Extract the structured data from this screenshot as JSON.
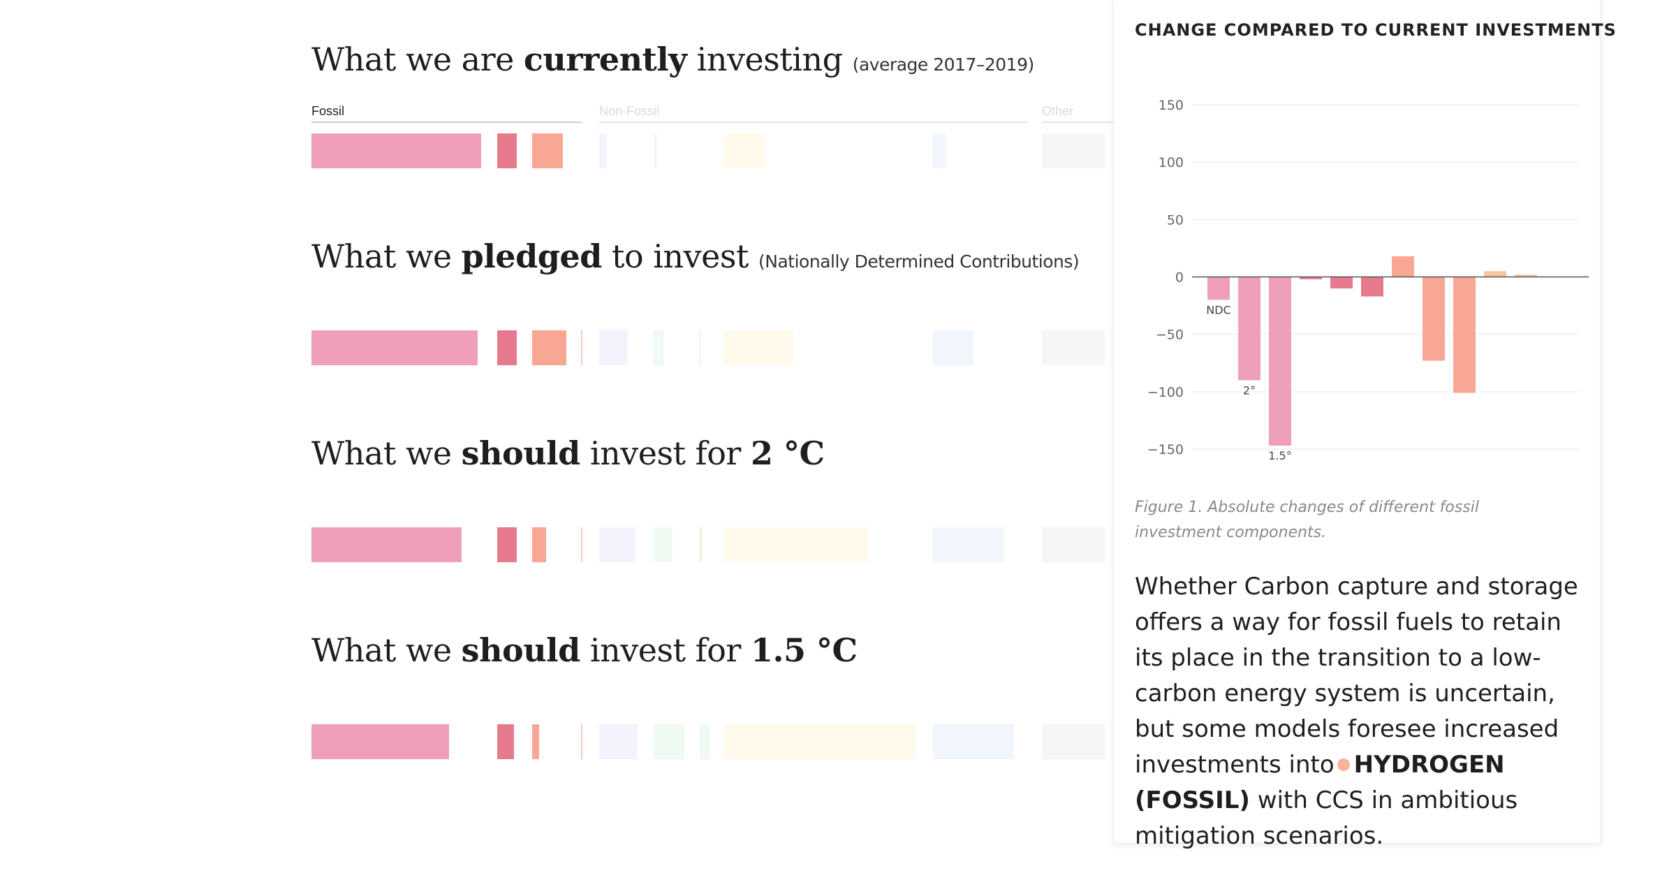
{
  "sections": [
    {
      "pre": "What we are ",
      "bold": "currently",
      "post": " investing ",
      "bold2": "",
      "sub": "(average 2017–2019)"
    },
    {
      "pre": "What we ",
      "bold": "pledged",
      "post": " to invest ",
      "bold2": "",
      "sub": "(Nationally Determined Contributions)"
    },
    {
      "pre": "What we ",
      "bold": "should",
      "post": " invest for ",
      "bold2": "2 °C",
      "sub": ""
    },
    {
      "pre": "What we ",
      "bold": "should",
      "post": " invest for ",
      "bold2": "1.5 °C",
      "sub": ""
    }
  ],
  "categories": {
    "fossil": "Fossil",
    "non_fossil": "Non-Fossil",
    "other": "Other"
  },
  "investment_bars": [
    [
      {
        "color": "#ef9fb8",
        "w": 243
      },
      {
        "color": "#e47a8c",
        "w": 28
      },
      {
        "color": "#f8a794",
        "w": 44
      },
      {
        "color": "#f4f3fd",
        "w": 11
      },
      {
        "color": "#f0f0f0",
        "w": 2
      },
      {
        "color": "#fffaec",
        "w": 60
      },
      {
        "color": "#f0f6fc",
        "w": 18
      },
      {
        "color": "#f6f6f7",
        "w": 90
      }
    ],
    [
      {
        "color": "#ef9fb8",
        "w": 238
      },
      {
        "color": "#e47a8c",
        "w": 28
      },
      {
        "color": "#f8a794",
        "w": 49
      },
      {
        "color": "#f6cbc0",
        "w": 2
      },
      {
        "color": "#f4f3fd",
        "w": 41
      },
      {
        "color": "#eefaf2",
        "w": 14
      },
      {
        "color": "#f0f0f0",
        "w": 2
      },
      {
        "color": "#fffaec",
        "w": 100
      },
      {
        "color": "#f0f6fc",
        "w": 58
      },
      {
        "color": "#f6f6f7",
        "w": 90
      }
    ],
    [
      {
        "color": "#ef9fb8",
        "w": 215
      },
      {
        "color": "#e47a8c",
        "w": 28
      },
      {
        "color": "#f8a794",
        "w": 20
      },
      {
        "color": "#f6cbc0",
        "w": 2
      },
      {
        "color": "#f4f3fd",
        "w": 52
      },
      {
        "color": "#eefaf2",
        "w": 27
      },
      {
        "color": "#efece0",
        "w": 3
      },
      {
        "color": "#fffaec",
        "w": 208
      },
      {
        "color": "#f0f6fc",
        "w": 102
      },
      {
        "color": "#f6f6f7",
        "w": 90
      }
    ],
    [
      {
        "color": "#ef9fb8",
        "w": 197
      },
      {
        "color": "#e47a8c",
        "w": 24
      },
      {
        "color": "#f8a794",
        "w": 10
      },
      {
        "color": "#f6cbc0",
        "w": 2
      },
      {
        "color": "#f4f3fd",
        "w": 55
      },
      {
        "color": "#eefaf2",
        "w": 44
      },
      {
        "color": "#eefaf2",
        "w": 15
      },
      {
        "color": "#fffaec",
        "w": 275
      },
      {
        "color": "#f0f6fc",
        "w": 116
      },
      {
        "color": "#f6f6f7",
        "w": 90
      }
    ]
  ],
  "panel": {
    "title": "CHANGE COMPARED TO CURRENT INVESTMENTS",
    "caption": "Figure 1. Absolute changes of different fossil investment components.",
    "text_before": "Whether Carbon capture and storage offers a way for fossil fuels to retain its place in the transition to a low-carbon energy system is uncertain, but some models foresee increased investments into",
    "highlight": "HYDROGEN (FOSSIL)",
    "text_after": " with CCS in ambitious mitigation scenarios.",
    "highlight_color": "#f7b29b"
  },
  "chart_data": {
    "type": "bar",
    "title": "CHANGE COMPARED TO CURRENT INVESTMENTS",
    "ylim": [
      -150,
      150
    ],
    "yticks": [
      150,
      100,
      50,
      0,
      -50,
      -100,
      -150
    ],
    "ytick_labels": [
      "150",
      "100",
      "50",
      "0",
      "−50",
      "−100",
      "−150"
    ],
    "grid": true,
    "series": [
      {
        "values": [
          -20,
          -90,
          -147,
          -2,
          -10,
          -17,
          18,
          -73,
          -101,
          5,
          2
        ]
      }
    ],
    "colors": [
      "#ef9fb8",
      "#ef9fb8",
      "#ef9fb8",
      "#e47a8c",
      "#e47a8c",
      "#e47a8c",
      "#f8a794",
      "#f8a794",
      "#f8a794",
      "#f7c59d",
      "#f7c59d"
    ],
    "bar_labels": [
      "NDC",
      "2°",
      "1.5°",
      "",
      "",
      "",
      "",
      "",
      "",
      "",
      ""
    ]
  }
}
